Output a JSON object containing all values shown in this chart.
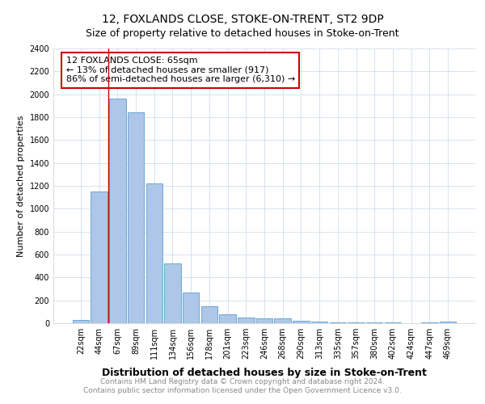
{
  "title": "12, FOXLANDS CLOSE, STOKE-ON-TRENT, ST2 9DP",
  "subtitle": "Size of property relative to detached houses in Stoke-on-Trent",
  "xlabel": "Distribution of detached houses by size in Stoke-on-Trent",
  "ylabel": "Number of detached properties",
  "categories": [
    "22sqm",
    "44sqm",
    "67sqm",
    "89sqm",
    "111sqm",
    "134sqm",
    "156sqm",
    "178sqm",
    "201sqm",
    "223sqm",
    "246sqm",
    "268sqm",
    "290sqm",
    "313sqm",
    "335sqm",
    "357sqm",
    "380sqm",
    "402sqm",
    "424sqm",
    "447sqm",
    "469sqm"
  ],
  "values": [
    30,
    1150,
    1960,
    1840,
    1220,
    520,
    265,
    145,
    80,
    50,
    45,
    45,
    20,
    15,
    8,
    5,
    5,
    5,
    3,
    10,
    15
  ],
  "bar_color": "#aec6e8",
  "bar_edge_color": "#5a9fd4",
  "vline_color": "#cc0000",
  "vline_x_index": 2,
  "annotation_text": "12 FOXLANDS CLOSE: 65sqm\n← 13% of detached houses are smaller (917)\n86% of semi-detached houses are larger (6,310) →",
  "annotation_box_color": "#ffffff",
  "annotation_box_edge_color": "#cc0000",
  "ylim": [
    0,
    2400
  ],
  "yticks": [
    0,
    200,
    400,
    600,
    800,
    1000,
    1200,
    1400,
    1600,
    1800,
    2000,
    2200,
    2400
  ],
  "grid_color": "#c8d8e8",
  "bg_color": "#ffffff",
  "footer_line1": "Contains HM Land Registry data © Crown copyright and database right 2024.",
  "footer_line2": "Contains public sector information licensed under the Open Government Licence v3.0.",
  "title_fontsize": 10,
  "subtitle_fontsize": 9,
  "xlabel_fontsize": 9,
  "ylabel_fontsize": 8,
  "tick_fontsize": 7,
  "annotation_fontsize": 8,
  "footer_fontsize": 6.5
}
